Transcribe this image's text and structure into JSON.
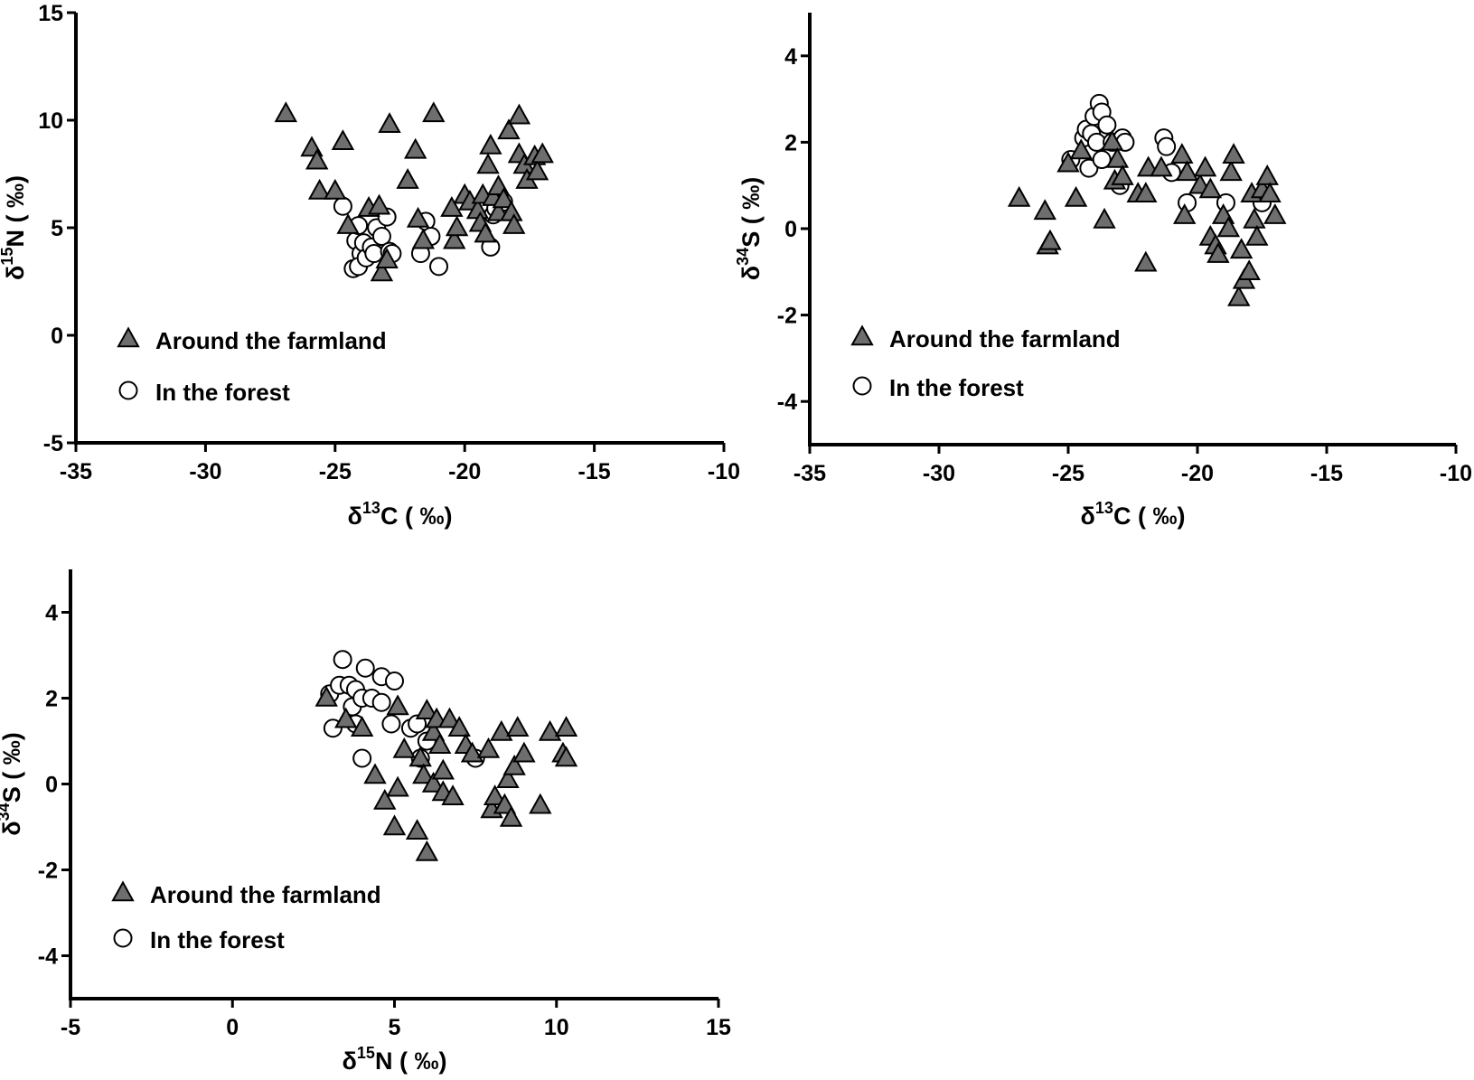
{
  "legend": {
    "farmland": "Around the farmland",
    "forest": "In the forest"
  },
  "colors": {
    "farmland_fill": "#6e6e6e",
    "farmland_stroke": "#000000",
    "forest_fill": "#ffffff",
    "forest_stroke": "#000000"
  },
  "chart_data": [
    {
      "type": "scatter",
      "id": "c13-n15",
      "xlabel": {
        "pre": "δ",
        "sup": "13",
        "post": "C ( ‰)"
      },
      "ylabel": {
        "pre": "δ",
        "sup": "15",
        "post": "N ( ‰)"
      },
      "xlim": [
        -35,
        -10
      ],
      "ylim": [
        -5,
        15
      ],
      "xticks": [
        -35,
        -30,
        -25,
        -20,
        -15,
        -10
      ],
      "yticks": [
        -5,
        0,
        5,
        10,
        15
      ],
      "legend_position": "bottom-left",
      "series": [
        {
          "name": "Around the farmland",
          "marker": "triangle",
          "points": [
            [
              -26.9,
              10.3
            ],
            [
              -25.9,
              8.7
            ],
            [
              -25.7,
              8.1
            ],
            [
              -25.6,
              6.7
            ],
            [
              -25.0,
              6.7
            ],
            [
              -24.7,
              9.0
            ],
            [
              -24.5,
              5.1
            ],
            [
              -23.7,
              5.9
            ],
            [
              -23.3,
              6.0
            ],
            [
              -23.2,
              2.9
            ],
            [
              -23.0,
              3.5
            ],
            [
              -22.9,
              9.8
            ],
            [
              -22.2,
              7.2
            ],
            [
              -21.9,
              8.6
            ],
            [
              -21.8,
              5.4
            ],
            [
              -21.2,
              10.3
            ],
            [
              -21.6,
              4.4
            ],
            [
              -20.5,
              5.9
            ],
            [
              -20.4,
              4.4
            ],
            [
              -20.3,
              5.0
            ],
            [
              -20.0,
              6.5
            ],
            [
              -19.8,
              6.2
            ],
            [
              -19.5,
              5.8
            ],
            [
              -19.3,
              6.5
            ],
            [
              -19.4,
              5.2
            ],
            [
              -19.2,
              4.7
            ],
            [
              -19.0,
              8.8
            ],
            [
              -19.1,
              7.9
            ],
            [
              -18.9,
              6.4
            ],
            [
              -18.7,
              6.9
            ],
            [
              -18.7,
              5.7
            ],
            [
              -18.5,
              6.3
            ],
            [
              -18.3,
              9.5
            ],
            [
              -18.2,
              5.7
            ],
            [
              -18.1,
              5.1
            ],
            [
              -17.9,
              10.2
            ],
            [
              -17.9,
              8.4
            ],
            [
              -17.7,
              7.9
            ],
            [
              -17.6,
              7.2
            ],
            [
              -17.3,
              8.3
            ],
            [
              -17.2,
              7.6
            ],
            [
              -17.0,
              8.4
            ]
          ]
        },
        {
          "name": "In the forest",
          "marker": "circle",
          "points": [
            [
              -24.7,
              6.0
            ],
            [
              -24.2,
              4.4
            ],
            [
              -24.1,
              5.1
            ],
            [
              -24.0,
              3.8
            ],
            [
              -23.9,
              4.3
            ],
            [
              -24.3,
              3.1
            ],
            [
              -24.1,
              3.2
            ],
            [
              -23.8,
              3.6
            ],
            [
              -23.6,
              4.1
            ],
            [
              -23.5,
              3.8
            ],
            [
              -23.4,
              5.0
            ],
            [
              -23.2,
              4.6
            ],
            [
              -23.0,
              5.5
            ],
            [
              -22.9,
              3.9
            ],
            [
              -22.8,
              3.8
            ],
            [
              -21.5,
              5.3
            ],
            [
              -21.3,
              4.6
            ],
            [
              -21.7,
              3.8
            ],
            [
              -21.0,
              3.2
            ],
            [
              -19.0,
              4.1
            ],
            [
              -18.9,
              5.6
            ],
            [
              -18.8,
              5.9
            ],
            [
              -18.5,
              6.2
            ]
          ]
        }
      ]
    },
    {
      "type": "scatter",
      "id": "c13-s34",
      "xlabel": {
        "pre": "δ",
        "sup": "13",
        "post": "C ( ‰)"
      },
      "ylabel": {
        "pre": "δ",
        "sup": "34",
        "post": "S ( ‰)"
      },
      "xlim": [
        -35,
        -10
      ],
      "ylim": [
        -5,
        5
      ],
      "xticks": [
        -35,
        -30,
        -25,
        -20,
        -15,
        -10
      ],
      "yticks": [
        -4,
        -2,
        0,
        2,
        4
      ],
      "legend_position": "bottom-left",
      "series": [
        {
          "name": "Around the farmland",
          "marker": "triangle",
          "points": [
            [
              -26.9,
              0.7
            ],
            [
              -25.9,
              0.4
            ],
            [
              -25.8,
              -0.4
            ],
            [
              -25.7,
              -0.3
            ],
            [
              -25.0,
              1.5
            ],
            [
              -24.7,
              0.7
            ],
            [
              -24.5,
              1.8
            ],
            [
              -23.6,
              0.2
            ],
            [
              -23.3,
              2.0
            ],
            [
              -23.1,
              1.6
            ],
            [
              -23.2,
              1.1
            ],
            [
              -22.9,
              1.2
            ],
            [
              -22.3,
              0.8
            ],
            [
              -22.0,
              0.8
            ],
            [
              -21.9,
              1.4
            ],
            [
              -22.0,
              -0.8
            ],
            [
              -21.4,
              1.4
            ],
            [
              -20.6,
              1.7
            ],
            [
              -20.5,
              0.3
            ],
            [
              -20.4,
              1.3
            ],
            [
              -19.9,
              1.0
            ],
            [
              -19.7,
              1.4
            ],
            [
              -19.5,
              0.9
            ],
            [
              -19.5,
              -0.2
            ],
            [
              -19.3,
              -0.4
            ],
            [
              -19.2,
              -0.6
            ],
            [
              -19.0,
              0.3
            ],
            [
              -18.8,
              0.0
            ],
            [
              -18.7,
              1.3
            ],
            [
              -18.6,
              1.7
            ],
            [
              -18.4,
              -1.6
            ],
            [
              -18.3,
              -0.5
            ],
            [
              -18.2,
              -1.2
            ],
            [
              -18.0,
              -1.0
            ],
            [
              -17.9,
              0.8
            ],
            [
              -17.8,
              0.2
            ],
            [
              -17.7,
              -0.2
            ],
            [
              -17.5,
              0.9
            ],
            [
              -17.3,
              1.2
            ],
            [
              -17.2,
              0.8
            ],
            [
              -17.0,
              0.3
            ]
          ]
        },
        {
          "name": "In the forest",
          "marker": "circle",
          "points": [
            [
              -24.9,
              1.6
            ],
            [
              -24.4,
              2.1
            ],
            [
              -24.3,
              2.3
            ],
            [
              -24.2,
              1.4
            ],
            [
              -24.1,
              2.2
            ],
            [
              -24.0,
              2.6
            ],
            [
              -23.9,
              2.0
            ],
            [
              -23.8,
              2.9
            ],
            [
              -23.7,
              2.7
            ],
            [
              -23.7,
              1.6
            ],
            [
              -23.5,
              2.4
            ],
            [
              -23.3,
              2.0
            ],
            [
              -23.0,
              1.0
            ],
            [
              -22.9,
              2.1
            ],
            [
              -22.8,
              2.0
            ],
            [
              -21.3,
              2.1
            ],
            [
              -21.2,
              1.9
            ],
            [
              -21.0,
              1.3
            ],
            [
              -20.4,
              0.6
            ],
            [
              -18.9,
              0.6
            ],
            [
              -17.5,
              0.6
            ]
          ]
        }
      ]
    },
    {
      "type": "scatter",
      "id": "n15-s34",
      "xlabel": {
        "pre": "δ",
        "sup": "15",
        "post": "N ( ‰)"
      },
      "ylabel": {
        "pre": "δ",
        "sup": "34",
        "post": "S ( ‰)"
      },
      "xlim": [
        -5,
        15
      ],
      "ylim": [
        -5,
        5
      ],
      "xticks": [
        -5,
        0,
        5,
        10,
        15
      ],
      "yticks": [
        -4,
        -2,
        0,
        2,
        4
      ],
      "legend_position": "bottom-left",
      "series": [
        {
          "name": "Around the farmland",
          "marker": "triangle",
          "points": [
            [
              2.9,
              2.0
            ],
            [
              3.5,
              1.5
            ],
            [
              4.0,
              1.3
            ],
            [
              4.4,
              0.2
            ],
            [
              4.7,
              -0.4
            ],
            [
              5.0,
              -1.0
            ],
            [
              5.1,
              -0.1
            ],
            [
              5.1,
              1.8
            ],
            [
              5.3,
              0.8
            ],
            [
              5.7,
              -1.1
            ],
            [
              5.8,
              0.6
            ],
            [
              5.9,
              0.2
            ],
            [
              6.0,
              -1.6
            ],
            [
              6.0,
              1.7
            ],
            [
              6.2,
              0.0
            ],
            [
              6.2,
              1.2
            ],
            [
              6.3,
              1.5
            ],
            [
              6.4,
              0.9
            ],
            [
              6.5,
              -0.2
            ],
            [
              6.5,
              0.3
            ],
            [
              6.7,
              1.5
            ],
            [
              6.8,
              -0.3
            ],
            [
              7.0,
              1.3
            ],
            [
              7.2,
              0.9
            ],
            [
              7.4,
              0.7
            ],
            [
              7.9,
              0.8
            ],
            [
              8.0,
              -0.6
            ],
            [
              8.1,
              -0.3
            ],
            [
              8.3,
              1.2
            ],
            [
              8.4,
              -0.5
            ],
            [
              8.5,
              0.1
            ],
            [
              8.6,
              -0.8
            ],
            [
              8.7,
              0.4
            ],
            [
              8.8,
              1.3
            ],
            [
              9.0,
              0.7
            ],
            [
              9.5,
              -0.5
            ],
            [
              9.8,
              1.2
            ],
            [
              10.2,
              0.7
            ],
            [
              10.3,
              1.3
            ],
            [
              10.3,
              0.6
            ]
          ]
        },
        {
          "name": "In the forest",
          "marker": "circle",
          "points": [
            [
              3.0,
              2.1
            ],
            [
              3.1,
              1.3
            ],
            [
              3.3,
              2.3
            ],
            [
              3.4,
              2.9
            ],
            [
              3.6,
              2.3
            ],
            [
              3.7,
              1.8
            ],
            [
              3.8,
              1.4
            ],
            [
              3.8,
              2.2
            ],
            [
              4.0,
              2.0
            ],
            [
              4.0,
              0.6
            ],
            [
              4.1,
              2.7
            ],
            [
              4.3,
              2.0
            ],
            [
              4.6,
              2.5
            ],
            [
              4.6,
              1.9
            ],
            [
              4.9,
              1.4
            ],
            [
              5.0,
              2.4
            ],
            [
              5.5,
              1.3
            ],
            [
              5.7,
              1.4
            ],
            [
              5.8,
              0.6
            ],
            [
              6.0,
              1.0
            ],
            [
              7.5,
              0.6
            ]
          ]
        }
      ]
    }
  ]
}
